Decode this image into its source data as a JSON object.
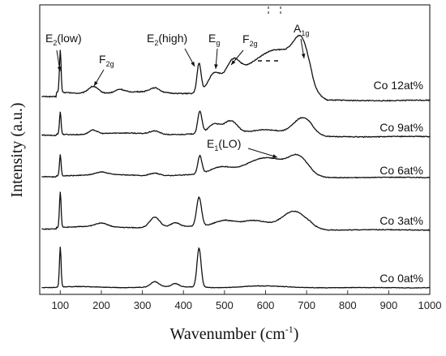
{
  "chart_data": {
    "type": "line",
    "xlabel": "Wavenumber (cm",
    "xlabel_sup": "-1",
    "xlabel_close": ")",
    "ylabel": "Intensity (a.u.)",
    "xlim": [
      50,
      1000
    ],
    "x_ticks": [
      100,
      200,
      300,
      400,
      500,
      600,
      700,
      800,
      900,
      1000
    ],
    "legend": "inline-right",
    "series": [
      {
        "name": "Co 12at%",
        "baseline": 0.25,
        "sharp": [
          {
            "x": 100,
            "h": 0.95,
            "w": 2
          },
          {
            "x": 438,
            "h": 0.65,
            "w": 5
          }
        ],
        "bumps": [
          {
            "x": 180,
            "h": 0.16,
            "w": 12
          },
          {
            "x": 245,
            "h": 0.07,
            "w": 10
          },
          {
            "x": 330,
            "h": 0.1,
            "w": 12
          },
          {
            "x": 475,
            "h": 0.42,
            "w": 15
          },
          {
            "x": 520,
            "h": 0.62,
            "w": 18
          },
          {
            "x": 570,
            "h": 0.56,
            "w": 28
          },
          {
            "x": 615,
            "h": 0.6,
            "w": 25
          },
          {
            "x": 660,
            "h": 0.75,
            "w": 28
          },
          {
            "x": 690,
            "h": 0.8,
            "w": 18
          }
        ]
      },
      {
        "name": "Co 9at%",
        "baseline": 0.1,
        "sharp": [
          {
            "x": 100,
            "h": 0.55,
            "w": 2
          },
          {
            "x": 440,
            "h": 0.55,
            "w": 5
          }
        ],
        "bumps": [
          {
            "x": 180,
            "h": 0.1,
            "w": 10
          },
          {
            "x": 330,
            "h": 0.08,
            "w": 12
          },
          {
            "x": 475,
            "h": 0.22,
            "w": 14
          },
          {
            "x": 515,
            "h": 0.3,
            "w": 16
          },
          {
            "x": 600,
            "h": 0.12,
            "w": 35
          },
          {
            "x": 690,
            "h": 0.38,
            "w": 22
          }
        ]
      },
      {
        "name": "Co 6at%",
        "baseline": 0.1,
        "sharp": [
          {
            "x": 100,
            "h": 0.65,
            "w": 2
          },
          {
            "x": 440,
            "h": 0.55,
            "w": 5
          }
        ],
        "bumps": [
          {
            "x": 200,
            "h": 0.08,
            "w": 14
          },
          {
            "x": 330,
            "h": 0.08,
            "w": 12
          },
          {
            "x": 490,
            "h": 0.2,
            "w": 25
          },
          {
            "x": 600,
            "h": 0.55,
            "w": 50
          },
          {
            "x": 680,
            "h": 0.45,
            "w": 22
          }
        ]
      },
      {
        "name": "Co 3at%",
        "baseline": 0.12,
        "sharp": [
          {
            "x": 100,
            "h": 1.05,
            "w": 2
          },
          {
            "x": 438,
            "h": 0.85,
            "w": 6
          }
        ],
        "bumps": [
          {
            "x": 200,
            "h": 0.1,
            "w": 14
          },
          {
            "x": 330,
            "h": 0.3,
            "w": 12
          },
          {
            "x": 380,
            "h": 0.12,
            "w": 10
          },
          {
            "x": 500,
            "h": 0.2,
            "w": 25
          },
          {
            "x": 570,
            "h": 0.2,
            "w": 30
          },
          {
            "x": 670,
            "h": 0.45,
            "w": 28
          }
        ]
      },
      {
        "name": "Co 0at%",
        "baseline": 0.03,
        "sharp": [
          {
            "x": 100,
            "h": 1.55,
            "w": 2
          },
          {
            "x": 438,
            "h": 1.5,
            "w": 5
          }
        ],
        "bumps": [
          {
            "x": 330,
            "h": 0.2,
            "w": 10
          },
          {
            "x": 380,
            "h": 0.12,
            "w": 8
          },
          {
            "x": 580,
            "h": 0.03,
            "w": 40
          }
        ]
      }
    ],
    "peak_annotations": [
      {
        "base": "E",
        "sub": "2",
        "rest": "(low)",
        "x": 100
      },
      {
        "base": "F",
        "sub": "2g",
        "rest": "",
        "x": 180
      },
      {
        "base": "E",
        "sub": "2",
        "rest": "(high)",
        "x": 438
      },
      {
        "base": "E",
        "sub": "g",
        "rest": "",
        "x": 475
      },
      {
        "base": "F",
        "sub": "2g",
        "rest": "",
        "x": 520
      },
      {
        "base": "A",
        "sub": "1g",
        "rest": "",
        "x": 690
      },
      {
        "base": "E",
        "sub": "1",
        "rest": "(LO)",
        "x": 600
      }
    ]
  }
}
